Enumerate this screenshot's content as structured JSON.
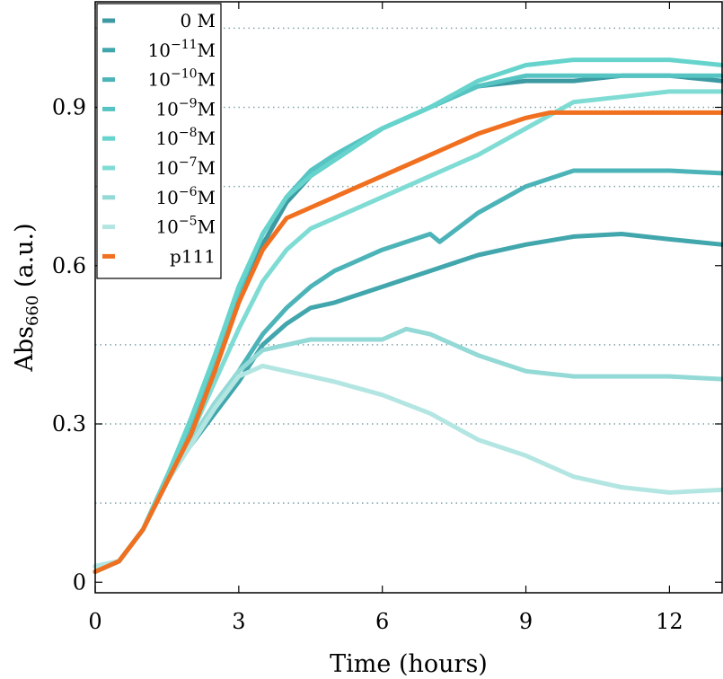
{
  "chart_data": {
    "type": "line",
    "xlabel": "Time (hours)",
    "ylabel": "Abs",
    "ylabel_subscript": "660",
    "ylabel_unit": "(a.u.)",
    "xlim": [
      0,
      13.1
    ],
    "ylim": [
      -0.02,
      1.1
    ],
    "xticks": [
      0,
      3,
      6,
      9,
      12
    ],
    "xtick_labels": [
      "0",
      "3",
      "6",
      "9",
      "12"
    ],
    "yticks": [
      0,
      0.3,
      0.6,
      0.9
    ],
    "ytick_labels": [
      "0",
      "0.3",
      "0.6",
      "0.9"
    ],
    "gridlines_y": [
      0.15,
      0.3,
      0.45,
      0.75,
      0.9,
      1.05
    ],
    "series": [
      {
        "name": "0 M",
        "base": "",
        "exp": "",
        "unit": "0 M",
        "color": "#3d9aa3",
        "x": [
          0,
          0.5,
          1,
          1.5,
          2,
          2.5,
          3,
          3.5,
          4,
          4.5,
          5,
          6,
          7,
          8,
          9,
          10,
          11,
          12,
          13.1
        ],
        "y": [
          0.02,
          0.04,
          0.1,
          0.2,
          0.3,
          0.41,
          0.53,
          0.64,
          0.72,
          0.77,
          0.8,
          0.86,
          0.9,
          0.94,
          0.95,
          0.95,
          0.96,
          0.96,
          0.95
        ]
      },
      {
        "name": "10^-11 M",
        "base": "10",
        "exp": "−11",
        "unit": "M",
        "color": "#42a6ad",
        "x": [
          0,
          0.5,
          1,
          1.5,
          2,
          2.5,
          3,
          3.5,
          4,
          4.5,
          5,
          6,
          7,
          8,
          9,
          10,
          11,
          12,
          13.1
        ],
        "y": [
          0.02,
          0.04,
          0.1,
          0.2,
          0.26,
          0.32,
          0.38,
          0.45,
          0.49,
          0.52,
          0.53,
          0.56,
          0.59,
          0.62,
          0.64,
          0.655,
          0.66,
          0.65,
          0.64
        ]
      },
      {
        "name": "10^-10 M",
        "base": "10",
        "exp": "−10",
        "unit": "M",
        "color": "#4cb4b8",
        "x": [
          0,
          0.5,
          1,
          1.5,
          2,
          2.5,
          3,
          3.5,
          4,
          4.5,
          5,
          6,
          7,
          7.2,
          8,
          9,
          10,
          11,
          12,
          13.1
        ],
        "y": [
          0.02,
          0.04,
          0.1,
          0.2,
          0.27,
          0.33,
          0.4,
          0.47,
          0.52,
          0.56,
          0.59,
          0.63,
          0.66,
          0.645,
          0.7,
          0.75,
          0.78,
          0.78,
          0.78,
          0.775
        ]
      },
      {
        "name": "10^-9 M",
        "base": "10",
        "exp": "−9",
        "unit": "M",
        "color": "#55c4c2",
        "x": [
          0,
          0.5,
          1,
          1.5,
          2,
          2.5,
          3,
          3.5,
          4,
          4.5,
          5,
          6,
          7,
          8,
          9,
          10,
          11,
          12,
          13.1
        ],
        "y": [
          0.02,
          0.04,
          0.1,
          0.2,
          0.3,
          0.42,
          0.55,
          0.66,
          0.73,
          0.78,
          0.81,
          0.86,
          0.9,
          0.94,
          0.96,
          0.96,
          0.96,
          0.96,
          0.96
        ]
      },
      {
        "name": "10^-8 M",
        "base": "10",
        "exp": "−8",
        "unit": "M",
        "color": "#66d4cc",
        "x": [
          0,
          0.5,
          1,
          1.5,
          2,
          2.5,
          3,
          3.5,
          4,
          4.5,
          5,
          6,
          7,
          8,
          9,
          10,
          11,
          12,
          13.1
        ],
        "y": [
          0.03,
          0.04,
          0.1,
          0.2,
          0.31,
          0.43,
          0.56,
          0.66,
          0.73,
          0.77,
          0.8,
          0.86,
          0.9,
          0.95,
          0.98,
          0.99,
          0.99,
          0.99,
          0.98
        ]
      },
      {
        "name": "10^-7 M",
        "base": "10",
        "exp": "−7",
        "unit": "M",
        "color": "#7fdcd4",
        "x": [
          0,
          0.5,
          1,
          1.5,
          2,
          2.5,
          3,
          3.5,
          4,
          4.5,
          5,
          6,
          7,
          8,
          9,
          10,
          11,
          12,
          13.1
        ],
        "y": [
          0.03,
          0.04,
          0.1,
          0.19,
          0.28,
          0.38,
          0.48,
          0.57,
          0.63,
          0.67,
          0.69,
          0.73,
          0.77,
          0.81,
          0.86,
          0.91,
          0.92,
          0.93,
          0.93
        ]
      },
      {
        "name": "10^-6 M",
        "base": "10",
        "exp": "−6",
        "unit": "M",
        "color": "#93d9d6",
        "x": [
          0,
          0.5,
          1,
          1.5,
          2,
          2.5,
          3,
          3.5,
          4,
          4.5,
          5,
          6,
          6.5,
          7,
          8,
          9,
          10,
          11,
          12,
          13.1
        ],
        "y": [
          0.03,
          0.04,
          0.1,
          0.19,
          0.27,
          0.34,
          0.4,
          0.44,
          0.45,
          0.46,
          0.46,
          0.46,
          0.48,
          0.47,
          0.43,
          0.4,
          0.39,
          0.39,
          0.39,
          0.385
        ]
      },
      {
        "name": "10^-5 M",
        "base": "10",
        "exp": "−5",
        "unit": "M",
        "color": "#b3e6e2",
        "x": [
          0,
          0.5,
          1,
          1.5,
          2,
          2.5,
          3,
          3.5,
          4,
          4.5,
          5,
          6,
          7,
          8,
          9,
          10,
          11,
          12,
          13.1
        ],
        "y": [
          0.03,
          0.04,
          0.1,
          0.19,
          0.26,
          0.33,
          0.39,
          0.41,
          0.4,
          0.39,
          0.38,
          0.355,
          0.32,
          0.27,
          0.24,
          0.2,
          0.18,
          0.17,
          0.175
        ]
      },
      {
        "name": "p111",
        "base": "",
        "exp": "",
        "unit": "p111",
        "color": "#f07020",
        "x": [
          0,
          0.5,
          1,
          1.5,
          2,
          2.5,
          3,
          3.5,
          4,
          4.5,
          5,
          6,
          7,
          8,
          9,
          9.5,
          10,
          11,
          12,
          13.1
        ],
        "y": [
          0.02,
          0.04,
          0.1,
          0.19,
          0.28,
          0.4,
          0.53,
          0.63,
          0.69,
          0.71,
          0.73,
          0.77,
          0.81,
          0.85,
          0.88,
          0.89,
          0.89,
          0.89,
          0.89,
          0.89
        ]
      }
    ]
  }
}
